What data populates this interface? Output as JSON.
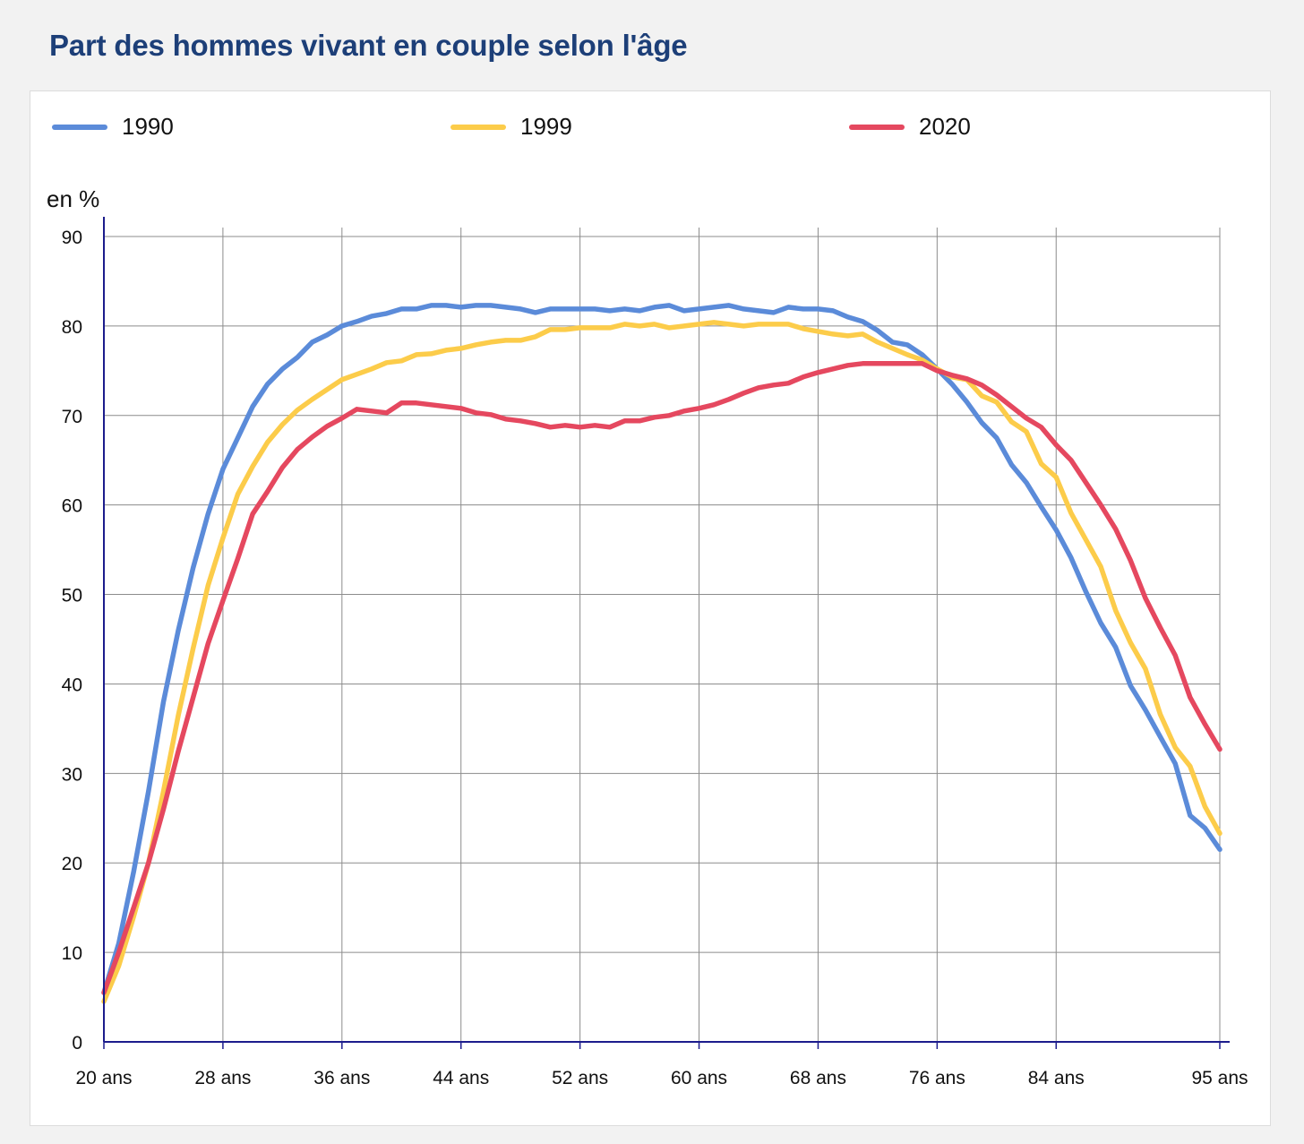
{
  "title": "Part des hommes vivant en couple selon l'âge",
  "colors": {
    "1990": "#5b8bd9",
    "1999": "#fccc4a",
    "2020": "#e5485f",
    "axis": "#1c1c8c",
    "grid": "#8c8c8c"
  },
  "chart_data": {
    "type": "line",
    "title": "Part des hommes vivant en couple selon l'âge",
    "ylabel": "en %",
    "xlabel": "",
    "ylim": [
      0,
      90
    ],
    "xlim": [
      20,
      95
    ],
    "grid": true,
    "legend_position": "top",
    "y_ticks": [
      "0",
      "10",
      "20",
      "30",
      "40",
      "50",
      "60",
      "70",
      "80",
      "90"
    ],
    "x_ticks": [
      {
        "x": 20,
        "label": "20 ans"
      },
      {
        "x": 28,
        "label": "28 ans"
      },
      {
        "x": 36,
        "label": "36 ans"
      },
      {
        "x": 44,
        "label": "44 ans"
      },
      {
        "x": 52,
        "label": "52 ans"
      },
      {
        "x": 60,
        "label": "60 ans"
      },
      {
        "x": 68,
        "label": "68 ans"
      },
      {
        "x": 76,
        "label": "76 ans"
      },
      {
        "x": 84,
        "label": "84 ans"
      },
      {
        "x": 95,
        "label": "95 ans"
      }
    ],
    "x": [
      20,
      21,
      22,
      23,
      24,
      25,
      26,
      27,
      28,
      29,
      30,
      31,
      32,
      33,
      34,
      35,
      36,
      37,
      38,
      39,
      40,
      41,
      42,
      43,
      44,
      45,
      46,
      47,
      48,
      49,
      50,
      51,
      52,
      53,
      54,
      55,
      56,
      57,
      58,
      59,
      60,
      61,
      62,
      63,
      64,
      65,
      66,
      67,
      68,
      69,
      70,
      71,
      72,
      73,
      74,
      75,
      76,
      77,
      78,
      79,
      80,
      81,
      82,
      83,
      84,
      85,
      86,
      87,
      88,
      89,
      90,
      91,
      92,
      93,
      94,
      95
    ],
    "series": [
      {
        "name": "1990",
        "color": "#5b8bd9",
        "values": [
          5.5,
          11,
          19,
          28,
          38,
          46,
          53,
          59,
          64,
          67.5,
          71,
          73.5,
          75.2,
          76.5,
          78.2,
          79,
          80,
          80.5,
          81.1,
          81.4,
          81.9,
          81.9,
          82.3,
          82.3,
          82.1,
          82.3,
          82.3,
          82.1,
          81.9,
          81.5,
          81.9,
          81.9,
          81.9,
          81.9,
          81.7,
          81.9,
          81.7,
          82.1,
          82.3,
          81.7,
          81.9,
          82.1,
          82.3,
          81.9,
          81.7,
          81.5,
          82.1,
          81.9,
          81.9,
          81.7,
          81.0,
          80.5,
          79.5,
          78.2,
          77.9,
          76.8,
          75.2,
          73.5,
          71.5,
          69.2,
          67.5,
          64.5,
          62.5,
          59.8,
          57.2,
          54.1,
          50.3,
          46.8,
          44.1,
          39.8,
          37.1,
          34.1,
          31.1,
          25.3,
          23.9,
          21.5
        ]
      },
      {
        "name": "1999",
        "color": "#fccc4a",
        "values": [
          4.5,
          8.5,
          14,
          20,
          28,
          36.5,
          44,
          51,
          56.3,
          61.2,
          64.3,
          67,
          69,
          70.6,
          71.8,
          72.9,
          74,
          74.6,
          75.2,
          75.9,
          76.1,
          76.8,
          76.9,
          77.3,
          77.5,
          77.9,
          78.2,
          78.4,
          78.4,
          78.8,
          79.6,
          79.6,
          79.8,
          79.8,
          79.8,
          80.2,
          80.0,
          80.2,
          79.8,
          80.0,
          80.2,
          80.4,
          80.2,
          80.0,
          80.2,
          80.2,
          80.2,
          79.7,
          79.4,
          79.1,
          78.9,
          79.1,
          78.2,
          77.5,
          76.8,
          76.2,
          75.2,
          74.3,
          74.0,
          72.2,
          71.5,
          69.3,
          68.2,
          64.6,
          63.1,
          59.1,
          56.1,
          53.1,
          48.2,
          44.6,
          41.7,
          36.6,
          32.9,
          30.8,
          26.3,
          23.3
        ]
      },
      {
        "name": "2020",
        "color": "#e5485f",
        "values": [
          5.5,
          10,
          15,
          20,
          26,
          32.5,
          38.5,
          44.5,
          49.3,
          54,
          59,
          61.5,
          64.2,
          66.2,
          67.6,
          68.8,
          69.7,
          70.7,
          70.5,
          70.3,
          71.4,
          71.4,
          71.2,
          71.0,
          70.8,
          70.3,
          70.1,
          69.6,
          69.4,
          69.1,
          68.7,
          68.9,
          68.7,
          68.9,
          68.7,
          69.4,
          69.4,
          69.8,
          70.0,
          70.5,
          70.8,
          71.2,
          71.8,
          72.5,
          73.1,
          73.4,
          73.6,
          74.3,
          74.8,
          75.2,
          75.6,
          75.8,
          75.8,
          75.8,
          75.8,
          75.8,
          75.0,
          74.5,
          74.1,
          73.4,
          72.3,
          71.0,
          69.7,
          68.7,
          66.7,
          65.0,
          62.5,
          60.0,
          57.3,
          53.8,
          49.6,
          46.3,
          43.2,
          38.5,
          35.5,
          32.7
        ]
      }
    ]
  }
}
